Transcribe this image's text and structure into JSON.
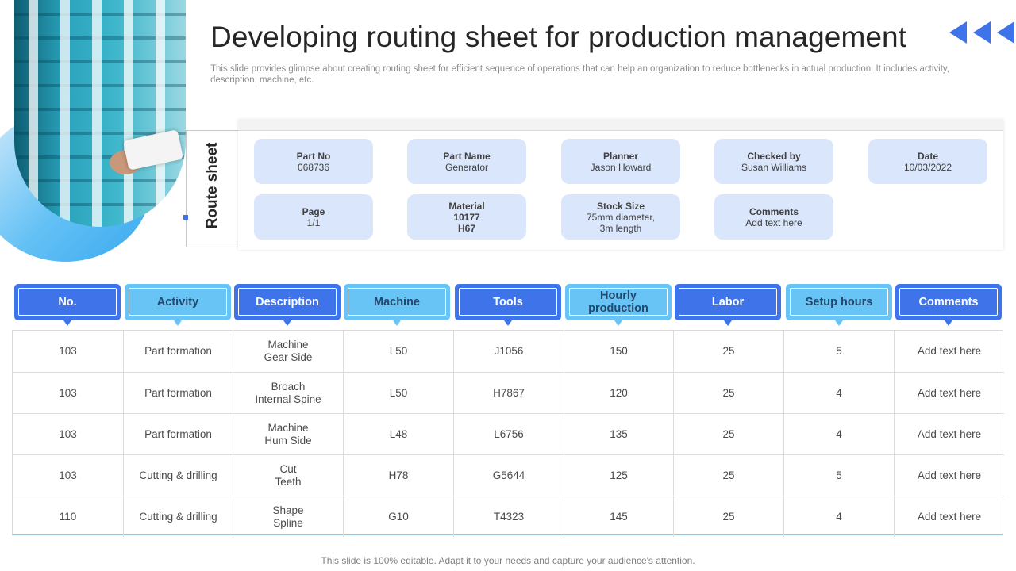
{
  "title": "Developing routing sheet for production management",
  "subtitle": "This slide provides glimpse about creating routing sheet for efficient sequence of operations that can help an organization to reduce bottlenecks in actual production. It includes activity, description, machine, etc.",
  "route_sheet": {
    "label": "Route sheet",
    "cards": [
      {
        "label": "Part No",
        "value": "068736"
      },
      {
        "label": "Part Name",
        "value": "Generator"
      },
      {
        "label": "Planner",
        "value": "Jason Howard"
      },
      {
        "label": "Checked by",
        "value": "Susan Williams"
      },
      {
        "label": "Date",
        "value": "10/03/2022"
      },
      {
        "label": "Page",
        "value": "1/1"
      },
      {
        "label": "Material",
        "value": "10177\nH67"
      },
      {
        "label": "Stock Size",
        "value": "75mm diameter,\n3m length"
      },
      {
        "label": "Comments",
        "value": "Add text here"
      }
    ]
  },
  "table": {
    "headers": [
      "No.",
      "Activity",
      "Description",
      "Machine",
      "Tools",
      "Hourly production",
      "Labor",
      "Setup hours",
      "Comments"
    ],
    "rows": [
      [
        "103",
        "Part formation",
        "Machine\nGear Side",
        "L50",
        "J1056",
        "150",
        "25",
        "5",
        "Add text here"
      ],
      [
        "103",
        "Part formation",
        "Broach\nInternal Spine",
        "L50",
        "H7867",
        "120",
        "25",
        "4",
        "Add text here"
      ],
      [
        "103",
        "Part formation",
        "Machine\nHum Side",
        "L48",
        "L6756",
        "135",
        "25",
        "4",
        "Add text here"
      ],
      [
        "103",
        "Cutting & drilling",
        "Cut\nTeeth",
        "H78",
        "G5644",
        "125",
        "25",
        "5",
        "Add text here"
      ],
      [
        "110",
        "Cutting & drilling",
        "Shape\nSpline",
        "G10",
        "T4323",
        "145",
        "25",
        "4",
        "Add text here"
      ]
    ]
  },
  "footer": "This slide is 100% editable. Adapt it to your needs and capture your audience's attention.",
  "colors": {
    "primary": "#3f73ea",
    "secondary": "#67c4f5",
    "card": "#dae6fb"
  }
}
